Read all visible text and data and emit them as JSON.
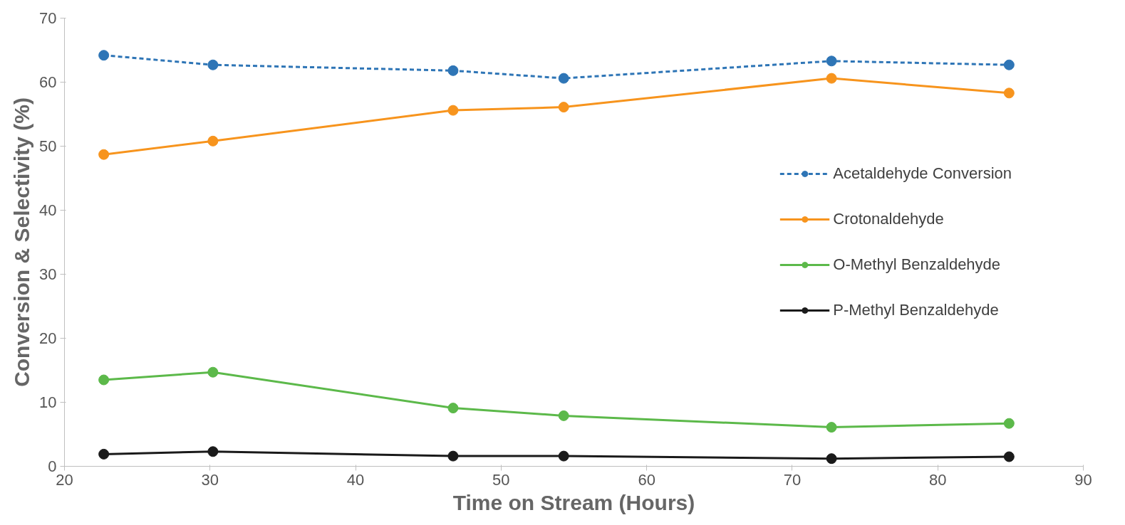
{
  "chart_data": {
    "type": "line",
    "xlabel": "Time on Stream (Hours)",
    "ylabel": "Conversion & Selectivity (%)",
    "x": [
      22.7,
      30.2,
      46.7,
      54.3,
      72.7,
      84.9
    ],
    "series": [
      {
        "name": "Acetaldehyde Conversion",
        "color": "#2e75b6",
        "line_style": "dashed",
        "values": [
          64.2,
          62.7,
          61.8,
          60.6,
          63.3,
          62.7
        ]
      },
      {
        "name": "Crotonaldehyde",
        "color": "#f7941d",
        "line_style": "solid",
        "values": [
          48.7,
          50.8,
          55.6,
          56.1,
          60.6,
          58.3
        ]
      },
      {
        "name": "O-Methyl Benzaldehyde",
        "color": "#5cb94a",
        "line_style": "solid",
        "values": [
          13.5,
          14.7,
          9.1,
          7.9,
          6.1,
          6.7
        ]
      },
      {
        "name": "P-Methyl Benzaldehyde",
        "color": "#1a1a1a",
        "line_style": "solid",
        "values": [
          1.9,
          2.3,
          1.6,
          1.6,
          1.2,
          1.5
        ]
      }
    ],
    "marker": "circle",
    "xlim": [
      20,
      90
    ],
    "xticks": [
      20,
      30,
      40,
      50,
      60,
      70,
      80,
      90
    ],
    "ylim": [
      0,
      70
    ],
    "yticks": [
      0,
      10,
      20,
      30,
      40,
      50,
      60,
      70
    ],
    "grid": false,
    "legend": "right"
  }
}
